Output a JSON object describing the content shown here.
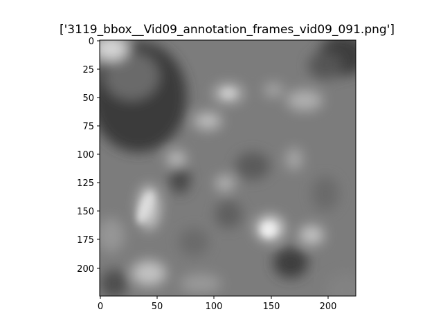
{
  "figure": {
    "title": "['3119_bbox__Vid09_annotation_frames_vid09_091.png']",
    "colormap": "gray"
  },
  "axes": {
    "x_ticks": [
      "0",
      "50",
      "100",
      "150",
      "200"
    ],
    "y_ticks": [
      "0",
      "25",
      "50",
      "75",
      "100",
      "125",
      "150",
      "175",
      "200"
    ],
    "x_range": [
      -0.5,
      224.5
    ],
    "y_range": [
      -0.5,
      224.5
    ]
  }
}
